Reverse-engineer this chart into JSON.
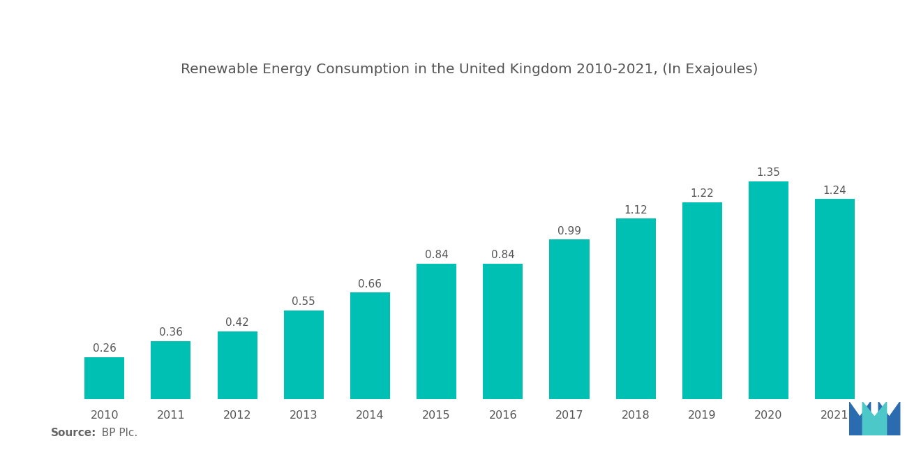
{
  "title": "Renewable Energy Consumption in the United Kingdom 2010-2021, (In Exajoules)",
  "years": [
    "2010",
    "2011",
    "2012",
    "2013",
    "2014",
    "2015",
    "2016",
    "2017",
    "2018",
    "2019",
    "2020",
    "2021"
  ],
  "values": [
    0.26,
    0.36,
    0.42,
    0.55,
    0.66,
    0.84,
    0.84,
    0.99,
    1.12,
    1.22,
    1.35,
    1.24
  ],
  "bar_color": "#00BFB3",
  "background_color": "#ffffff",
  "title_fontsize": 14.5,
  "label_fontsize": 11,
  "source_bold": "Source:",
  "source_normal": "  BP Plc.",
  "ylim": [
    0,
    1.9
  ],
  "bar_width": 0.6,
  "logo_blue": "#2B6CB0",
  "logo_teal": "#4DC8C8"
}
